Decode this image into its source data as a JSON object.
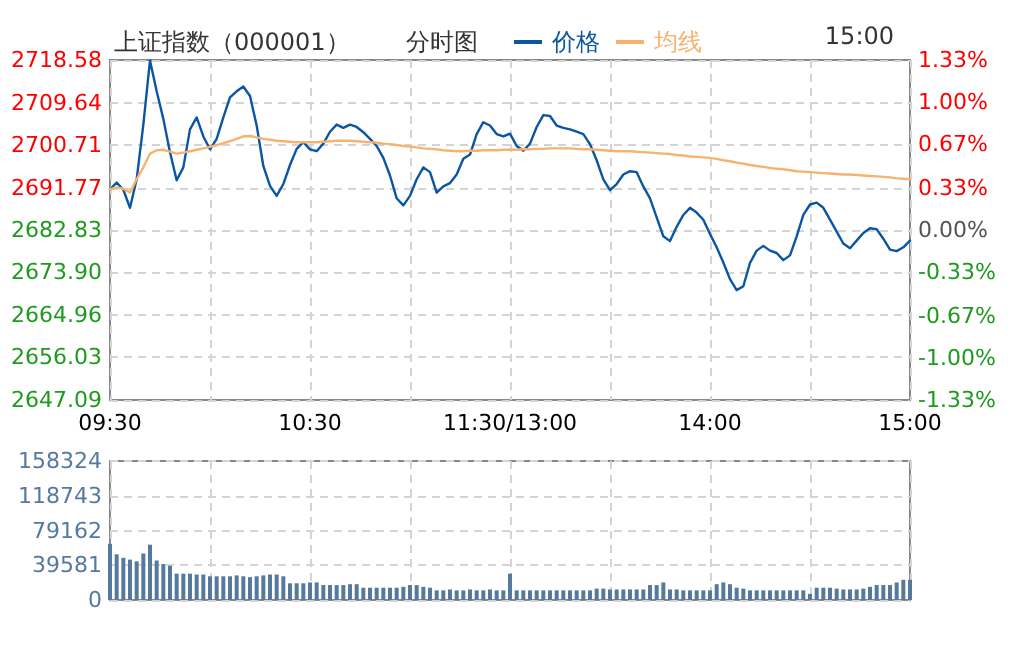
{
  "chart_data": [
    {
      "type": "line",
      "title": "上证指数（000001）",
      "subtitle": "分时图",
      "annotations": [
        "15:00"
      ],
      "legend": "top",
      "grid": true,
      "line_style": "solid",
      "marker": "none",
      "categories": [
        "09:30",
        null,
        null,
        null,
        null,
        null,
        null,
        null,
        null,
        null,
        null,
        null,
        null,
        null,
        null,
        null,
        null,
        null,
        null,
        null,
        null,
        null,
        null,
        null,
        null,
        null,
        null,
        null,
        null,
        null,
        "10:30",
        null,
        null,
        null,
        null,
        null,
        null,
        null,
        null,
        null,
        null,
        null,
        null,
        null,
        null,
        null,
        null,
        null,
        null,
        null,
        null,
        null,
        null,
        null,
        null,
        null,
        null,
        null,
        null,
        null,
        "11:30/13:00",
        null,
        null,
        null,
        null,
        null,
        null,
        null,
        null,
        null,
        null,
        null,
        null,
        null,
        null,
        null,
        null,
        null,
        null,
        null,
        null,
        null,
        null,
        null,
        null,
        null,
        null,
        null,
        null,
        null,
        "14:00",
        null,
        null,
        null,
        null,
        null,
        null,
        null,
        null,
        null,
        null,
        null,
        null,
        null,
        null,
        null,
        null,
        null,
        null,
        null,
        null,
        null,
        null,
        null,
        null,
        null,
        null,
        null,
        null,
        null,
        "15:00"
      ],
      "ylim": [
        2647.09,
        2718.58
      ],
      "yticks": [
        {
          "value": 2647.09,
          "label": "2647.09"
        },
        {
          "value": 2656.03,
          "label": "2656.03"
        },
        {
          "value": 2664.96,
          "label": "2664.96"
        },
        {
          "value": 2673.9,
          "label": "2673.90"
        },
        {
          "value": 2682.83,
          "label": "2682.83"
        },
        {
          "value": 2691.77,
          "label": "2691.77"
        },
        {
          "value": 2700.71,
          "label": "2700.71"
        },
        {
          "value": 2709.64,
          "label": "2709.64"
        },
        {
          "value": 2718.58,
          "label": "2718.58"
        }
      ],
      "y2lim": [
        -1.33,
        1.33
      ],
      "y2ticks": [
        {
          "value": -1.33,
          "label": "-1.33%"
        },
        {
          "value": -1,
          "label": "-1.00%"
        },
        {
          "value": -0.67,
          "label": "-0.67%"
        },
        {
          "value": -0.33,
          "label": "-0.33%"
        },
        {
          "value": 0,
          "label": "0.00%"
        },
        {
          "value": 0.33,
          "label": "0.33%"
        },
        {
          "value": 0.67,
          "label": "0.67%"
        },
        {
          "value": 1,
          "label": "1.00%"
        },
        {
          "value": 1.33,
          "label": "1.33%"
        }
      ],
      "series": [
        {
          "name": "价格",
          "color": "#0b56a4",
          "values": [
            2691.4,
            2692.8,
            2691.3,
            2687.5,
            2693.5,
            2705,
            2718.5,
            2712,
            2706.2,
            2699.2,
            2693.3,
            2696,
            2704,
            2706.5,
            2702.5,
            2699.8,
            2702,
            2706.5,
            2710.7,
            2712,
            2713,
            2711,
            2704.8,
            2696.3,
            2692.1,
            2690,
            2692.5,
            2696.5,
            2699.9,
            2701.3,
            2699.8,
            2699.4,
            2701,
            2703.5,
            2705,
            2704.3,
            2705,
            2704.5,
            2703.4,
            2702,
            2700.5,
            2698,
            2694.3,
            2689.5,
            2688,
            2690,
            2693.5,
            2696,
            2695,
            2690.7,
            2692,
            2692.7,
            2694.5,
            2697.8,
            2698.7,
            2703,
            2705.5,
            2704.8,
            2703,
            2702.5,
            2703.1,
            2700.5,
            2699.5,
            2701,
            2704.5,
            2707,
            2706.8,
            2704.8,
            2704.3,
            2704,
            2703.5,
            2703,
            2700.9,
            2697.5,
            2693.5,
            2691.2,
            2692.5,
            2694.5,
            2695.2,
            2695,
            2692,
            2689.5,
            2685.5,
            2681.5,
            2680.5,
            2683.5,
            2686,
            2687.5,
            2686.5,
            2685,
            2682,
            2679.2,
            2676,
            2672.5,
            2670.2,
            2671,
            2675.9,
            2678.5,
            2679.5,
            2678.5,
            2678,
            2676.5,
            2677.5,
            2681.5,
            2686,
            2688.2,
            2688.6,
            2687.5,
            2685,
            2682.5,
            2680,
            2679,
            2680.6,
            2682.2,
            2683.2,
            2683,
            2681,
            2678.7,
            2678.4,
            2679.2,
            2680.6
          ]
        },
        {
          "name": "均线",
          "color": "#f5b36e",
          "values": [
            2691.4,
            2691.8,
            2691.5,
            2690.7,
            2693.5,
            2696,
            2698.9,
            2699.6,
            2699.7,
            2699.3,
            2698.9,
            2699.1,
            2699.4,
            2699.7,
            2700,
            2700.3,
            2700.7,
            2701.1,
            2701.5,
            2702,
            2702.5,
            2702.6,
            2702.3,
            2702,
            2701.8,
            2701.6,
            2701.5,
            2701.4,
            2701.3,
            2701.3,
            2701.3,
            2701.3,
            2701.4,
            2701.5,
            2701.6,
            2701.6,
            2701.6,
            2701.5,
            2701.4,
            2701.3,
            2701.2,
            2701,
            2700.9,
            2700.7,
            2700.5,
            2700.4,
            2700.2,
            2700,
            2699.9,
            2699.8,
            2699.6,
            2699.5,
            2699.4,
            2699.4,
            2699.5,
            2699.5,
            2699.6,
            2699.6,
            2699.6,
            2699.7,
            2699.7,
            2699.7,
            2699.8,
            2699.8,
            2699.9,
            2699.9,
            2700,
            2700,
            2700,
            2700,
            2699.9,
            2699.8,
            2699.8,
            2699.7,
            2699.6,
            2699.5,
            2699.4,
            2699.4,
            2699.4,
            2699.3,
            2699.2,
            2699.1,
            2699,
            2698.9,
            2698.8,
            2698.6,
            2698.5,
            2698.3,
            2698.2,
            2698.1,
            2698,
            2697.8,
            2697.5,
            2697.3,
            2697,
            2696.8,
            2696.5,
            2696.3,
            2696.1,
            2695.9,
            2695.7,
            2695.6,
            2695.4,
            2695.2,
            2695.1,
            2695,
            2694.9,
            2694.8,
            2694.7,
            2694.6,
            2694.5,
            2694.5,
            2694.4,
            2694.3,
            2694.2,
            2694.1,
            2694,
            2693.9,
            2693.7,
            2693.6,
            2693.5
          ]
        }
      ]
    },
    {
      "type": "bar",
      "grid": true,
      "tick_labels": "y",
      "categories": [
        null,
        null,
        null,
        null,
        null,
        null,
        null,
        null,
        null,
        null,
        null,
        null,
        null,
        null,
        null,
        null,
        null,
        null,
        null,
        null,
        null,
        null,
        null,
        null,
        null,
        null,
        null,
        null,
        null,
        null,
        null,
        null,
        null,
        null,
        null,
        null,
        null,
        null,
        null,
        null,
        null,
        null,
        null,
        null,
        null,
        null,
        null,
        null,
        null,
        null,
        null,
        null,
        null,
        null,
        null,
        null,
        null,
        null,
        null,
        null,
        null,
        null,
        null,
        null,
        null,
        null,
        null,
        null,
        null,
        null,
        null,
        null,
        null,
        null,
        null,
        null,
        null,
        null,
        null,
        null,
        null,
        null,
        null,
        null,
        null,
        null,
        null,
        null,
        null,
        null,
        null,
        null,
        null,
        null,
        null,
        null,
        null,
        null,
        null,
        null,
        null,
        null,
        null,
        null,
        null,
        null,
        null,
        null,
        null,
        null,
        null,
        null,
        null,
        null,
        null,
        null,
        null,
        null,
        null,
        null,
        null
      ],
      "ylim": [
        0,
        158324
      ],
      "yticks": [
        0,
        39581,
        79162,
        118743,
        158324
      ],
      "series": [
        {
          "color": "#55799f",
          "values": [
            64000,
            52000,
            48000,
            46000,
            44000,
            53000,
            63000,
            45000,
            41000,
            39000,
            30000,
            30000,
            30000,
            29000,
            29000,
            27000,
            27000,
            27000,
            27000,
            28000,
            27000,
            26000,
            27000,
            28000,
            29000,
            29000,
            27000,
            19000,
            19000,
            19000,
            20000,
            20000,
            17000,
            17000,
            17000,
            17000,
            18000,
            18000,
            14000,
            14000,
            14000,
            14000,
            14000,
            14000,
            15000,
            17000,
            17000,
            15000,
            14000,
            11000,
            11000,
            12000,
            11000,
            11000,
            12000,
            11000,
            11000,
            12000,
            11000,
            11000,
            30000,
            11000,
            11000,
            11000,
            11000,
            11000,
            11000,
            11000,
            11000,
            11000,
            11000,
            11000,
            11000,
            13000,
            13000,
            12000,
            12000,
            12000,
            12000,
            12000,
            12000,
            17000,
            17000,
            20000,
            12000,
            12000,
            11000,
            11000,
            11000,
            11000,
            11000,
            18000,
            20000,
            18000,
            14000,
            13000,
            11000,
            11000,
            11000,
            11000,
            11000,
            11000,
            11000,
            11000,
            11000,
            7000,
            14000,
            14000,
            14000,
            13000,
            12000,
            12000,
            12000,
            13000,
            15000,
            17000,
            17000,
            17000,
            20000,
            23000,
            23000
          ]
        }
      ]
    }
  ]
}
